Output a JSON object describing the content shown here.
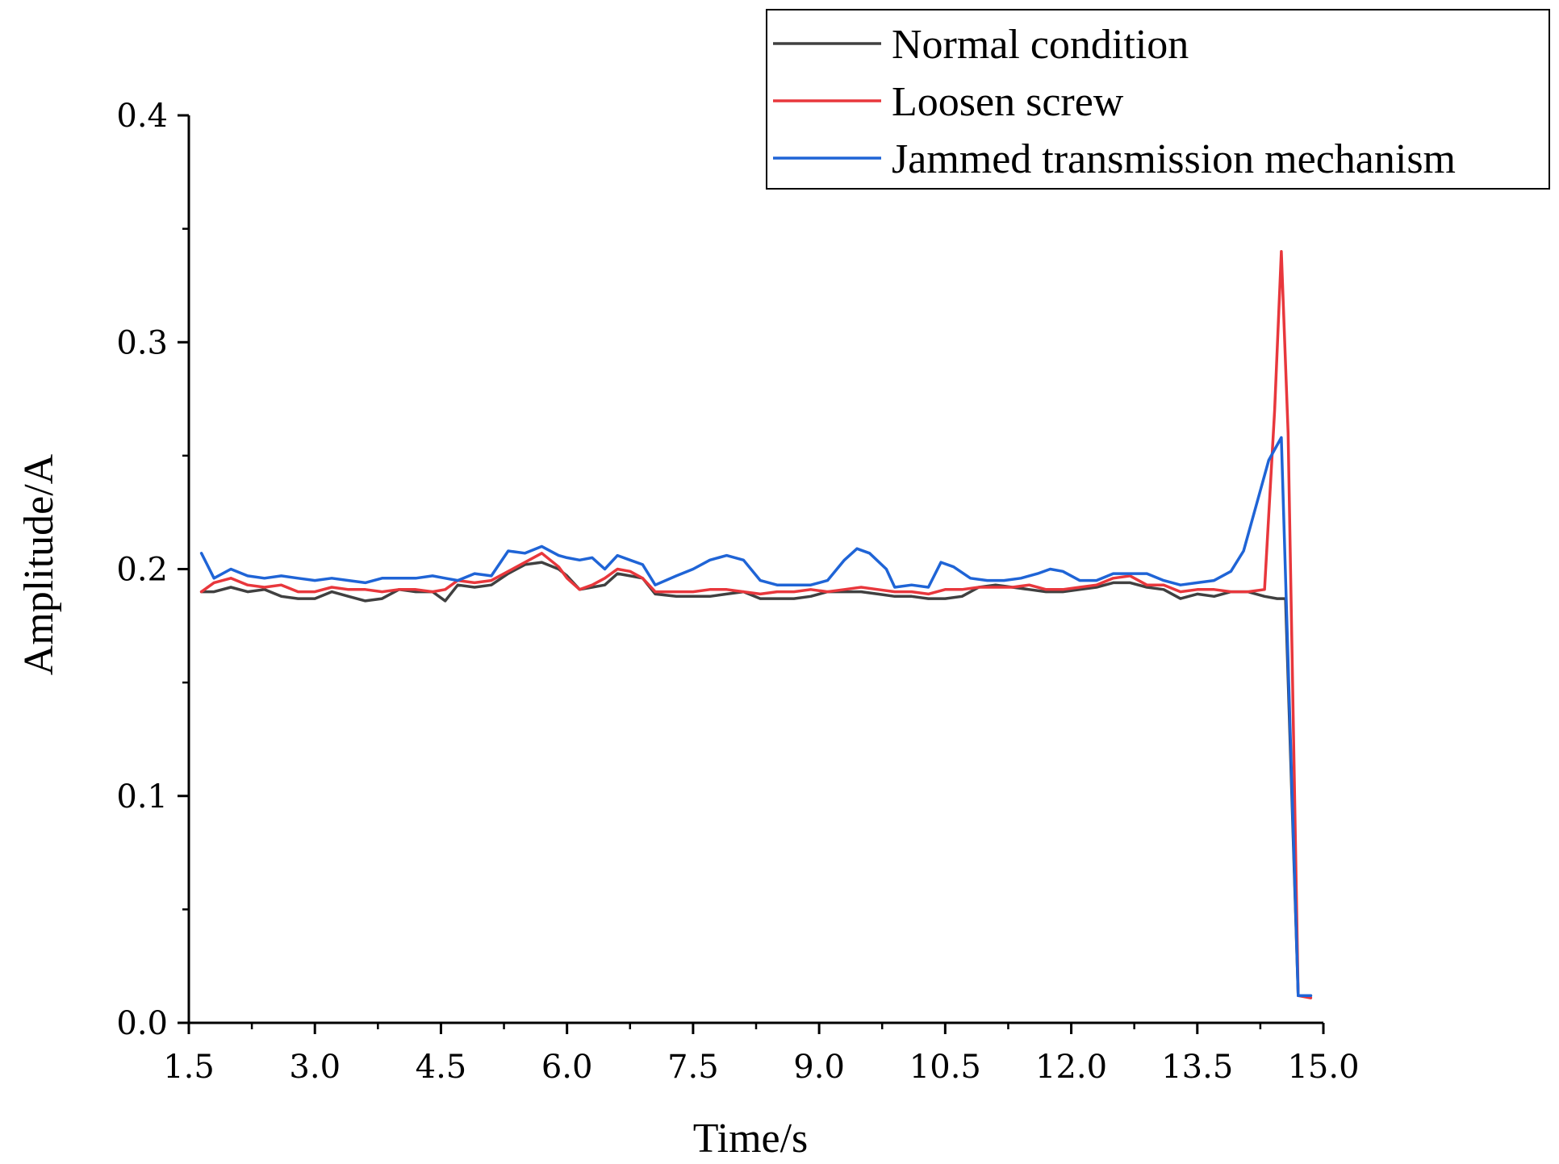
{
  "chart_data": {
    "type": "line",
    "title": "",
    "xlabel": "Time/s",
    "ylabel": "Amplitude/A",
    "xlim": [
      1.5,
      15.0
    ],
    "ylim": [
      0.0,
      0.4
    ],
    "xticks": [
      1.5,
      3.0,
      4.5,
      6.0,
      7.5,
      9.0,
      10.5,
      12.0,
      13.5,
      15.0
    ],
    "xtick_labels": [
      "1.5",
      "3.0",
      "4.5",
      "6.0",
      "7.5",
      "9.0",
      "10.5",
      "12.0",
      "13.5",
      "15.0"
    ],
    "yticks": [
      0.0,
      0.1,
      0.2,
      0.3,
      0.4
    ],
    "ytick_labels": [
      "0.0",
      "0.1",
      "0.2",
      "0.3",
      "0.4"
    ],
    "grid": false,
    "legend_position": "top-right",
    "series": [
      {
        "name": "Normal condition",
        "color": "#404040",
        "points": [
          [
            1.65,
            0.19
          ],
          [
            1.8,
            0.19
          ],
          [
            2.0,
            0.192
          ],
          [
            2.2,
            0.19
          ],
          [
            2.4,
            0.191
          ],
          [
            2.6,
            0.188
          ],
          [
            2.8,
            0.187
          ],
          [
            3.0,
            0.187
          ],
          [
            3.2,
            0.19
          ],
          [
            3.4,
            0.188
          ],
          [
            3.6,
            0.186
          ],
          [
            3.8,
            0.187
          ],
          [
            4.0,
            0.191
          ],
          [
            4.2,
            0.19
          ],
          [
            4.4,
            0.19
          ],
          [
            4.55,
            0.186
          ],
          [
            4.7,
            0.193
          ],
          [
            4.9,
            0.192
          ],
          [
            5.1,
            0.193
          ],
          [
            5.3,
            0.198
          ],
          [
            5.5,
            0.202
          ],
          [
            5.7,
            0.203
          ],
          [
            5.9,
            0.2
          ],
          [
            6.0,
            0.197
          ],
          [
            6.15,
            0.191
          ],
          [
            6.3,
            0.192
          ],
          [
            6.45,
            0.193
          ],
          [
            6.6,
            0.198
          ],
          [
            6.75,
            0.197
          ],
          [
            6.9,
            0.196
          ],
          [
            7.05,
            0.189
          ],
          [
            7.3,
            0.188
          ],
          [
            7.5,
            0.188
          ],
          [
            7.7,
            0.188
          ],
          [
            7.9,
            0.189
          ],
          [
            8.1,
            0.19
          ],
          [
            8.3,
            0.187
          ],
          [
            8.5,
            0.187
          ],
          [
            8.7,
            0.187
          ],
          [
            8.9,
            0.188
          ],
          [
            9.1,
            0.19
          ],
          [
            9.3,
            0.19
          ],
          [
            9.5,
            0.19
          ],
          [
            9.7,
            0.189
          ],
          [
            9.9,
            0.188
          ],
          [
            10.1,
            0.188
          ],
          [
            10.3,
            0.187
          ],
          [
            10.5,
            0.187
          ],
          [
            10.7,
            0.188
          ],
          [
            10.9,
            0.192
          ],
          [
            11.1,
            0.193
          ],
          [
            11.3,
            0.192
          ],
          [
            11.5,
            0.191
          ],
          [
            11.7,
            0.19
          ],
          [
            11.9,
            0.19
          ],
          [
            12.1,
            0.191
          ],
          [
            12.3,
            0.192
          ],
          [
            12.5,
            0.194
          ],
          [
            12.7,
            0.194
          ],
          [
            12.9,
            0.192
          ],
          [
            13.1,
            0.191
          ],
          [
            13.3,
            0.187
          ],
          [
            13.5,
            0.189
          ],
          [
            13.7,
            0.188
          ],
          [
            13.9,
            0.19
          ],
          [
            14.1,
            0.19
          ],
          [
            14.3,
            0.188
          ],
          [
            14.45,
            0.187
          ],
          [
            14.55,
            0.187
          ],
          [
            14.7,
            0.012
          ],
          [
            14.85,
            0.012
          ]
        ]
      },
      {
        "name": "Loosen screw",
        "color": "#e8373c",
        "points": [
          [
            1.65,
            0.19
          ],
          [
            1.8,
            0.194
          ],
          [
            2.0,
            0.196
          ],
          [
            2.2,
            0.193
          ],
          [
            2.4,
            0.192
          ],
          [
            2.6,
            0.193
          ],
          [
            2.8,
            0.19
          ],
          [
            3.0,
            0.19
          ],
          [
            3.2,
            0.192
          ],
          [
            3.4,
            0.191
          ],
          [
            3.6,
            0.191
          ],
          [
            3.8,
            0.19
          ],
          [
            4.0,
            0.191
          ],
          [
            4.2,
            0.191
          ],
          [
            4.4,
            0.19
          ],
          [
            4.55,
            0.191
          ],
          [
            4.7,
            0.195
          ],
          [
            4.9,
            0.194
          ],
          [
            5.1,
            0.195
          ],
          [
            5.3,
            0.199
          ],
          [
            5.5,
            0.203
          ],
          [
            5.7,
            0.207
          ],
          [
            5.9,
            0.201
          ],
          [
            6.0,
            0.196
          ],
          [
            6.15,
            0.191
          ],
          [
            6.3,
            0.193
          ],
          [
            6.45,
            0.196
          ],
          [
            6.6,
            0.2
          ],
          [
            6.75,
            0.199
          ],
          [
            6.9,
            0.196
          ],
          [
            7.05,
            0.19
          ],
          [
            7.3,
            0.19
          ],
          [
            7.5,
            0.19
          ],
          [
            7.7,
            0.191
          ],
          [
            7.9,
            0.191
          ],
          [
            8.1,
            0.19
          ],
          [
            8.3,
            0.189
          ],
          [
            8.5,
            0.19
          ],
          [
            8.7,
            0.19
          ],
          [
            8.9,
            0.191
          ],
          [
            9.1,
            0.19
          ],
          [
            9.3,
            0.191
          ],
          [
            9.5,
            0.192
          ],
          [
            9.7,
            0.191
          ],
          [
            9.9,
            0.19
          ],
          [
            10.1,
            0.19
          ],
          [
            10.3,
            0.189
          ],
          [
            10.5,
            0.191
          ],
          [
            10.7,
            0.191
          ],
          [
            10.9,
            0.192
          ],
          [
            11.1,
            0.192
          ],
          [
            11.3,
            0.192
          ],
          [
            11.5,
            0.193
          ],
          [
            11.7,
            0.191
          ],
          [
            11.9,
            0.191
          ],
          [
            12.1,
            0.192
          ],
          [
            12.3,
            0.193
          ],
          [
            12.5,
            0.196
          ],
          [
            12.7,
            0.197
          ],
          [
            12.9,
            0.193
          ],
          [
            13.1,
            0.193
          ],
          [
            13.3,
            0.19
          ],
          [
            13.5,
            0.191
          ],
          [
            13.7,
            0.191
          ],
          [
            13.9,
            0.19
          ],
          [
            14.1,
            0.19
          ],
          [
            14.3,
            0.191
          ],
          [
            14.42,
            0.27
          ],
          [
            14.5,
            0.34
          ],
          [
            14.58,
            0.26
          ],
          [
            14.7,
            0.012
          ],
          [
            14.85,
            0.011
          ]
        ]
      },
      {
        "name": "Jammed transmission mechanism",
        "color": "#1f64d6",
        "points": [
          [
            1.65,
            0.207
          ],
          [
            1.8,
            0.196
          ],
          [
            2.0,
            0.2
          ],
          [
            2.2,
            0.197
          ],
          [
            2.4,
            0.196
          ],
          [
            2.6,
            0.197
          ],
          [
            2.8,
            0.196
          ],
          [
            3.0,
            0.195
          ],
          [
            3.2,
            0.196
          ],
          [
            3.4,
            0.195
          ],
          [
            3.6,
            0.194
          ],
          [
            3.8,
            0.196
          ],
          [
            4.0,
            0.196
          ],
          [
            4.2,
            0.196
          ],
          [
            4.4,
            0.197
          ],
          [
            4.55,
            0.196
          ],
          [
            4.7,
            0.195
          ],
          [
            4.9,
            0.198
          ],
          [
            5.1,
            0.197
          ],
          [
            5.3,
            0.208
          ],
          [
            5.5,
            0.207
          ],
          [
            5.7,
            0.21
          ],
          [
            5.9,
            0.206
          ],
          [
            6.0,
            0.205
          ],
          [
            6.15,
            0.204
          ],
          [
            6.3,
            0.205
          ],
          [
            6.45,
            0.2
          ],
          [
            6.6,
            0.206
          ],
          [
            6.75,
            0.204
          ],
          [
            6.9,
            0.202
          ],
          [
            7.05,
            0.193
          ],
          [
            7.3,
            0.197
          ],
          [
            7.5,
            0.2
          ],
          [
            7.7,
            0.204
          ],
          [
            7.9,
            0.206
          ],
          [
            8.1,
            0.204
          ],
          [
            8.3,
            0.195
          ],
          [
            8.5,
            0.193
          ],
          [
            8.7,
            0.193
          ],
          [
            8.9,
            0.193
          ],
          [
            9.1,
            0.195
          ],
          [
            9.3,
            0.204
          ],
          [
            9.45,
            0.209
          ],
          [
            9.6,
            0.207
          ],
          [
            9.8,
            0.2
          ],
          [
            9.9,
            0.192
          ],
          [
            10.1,
            0.193
          ],
          [
            10.3,
            0.192
          ],
          [
            10.45,
            0.203
          ],
          [
            10.6,
            0.201
          ],
          [
            10.8,
            0.196
          ],
          [
            11.0,
            0.195
          ],
          [
            11.2,
            0.195
          ],
          [
            11.4,
            0.196
          ],
          [
            11.6,
            0.198
          ],
          [
            11.75,
            0.2
          ],
          [
            11.9,
            0.199
          ],
          [
            12.1,
            0.195
          ],
          [
            12.3,
            0.195
          ],
          [
            12.5,
            0.198
          ],
          [
            12.7,
            0.198
          ],
          [
            12.9,
            0.198
          ],
          [
            13.1,
            0.195
          ],
          [
            13.3,
            0.193
          ],
          [
            13.5,
            0.194
          ],
          [
            13.7,
            0.195
          ],
          [
            13.9,
            0.199
          ],
          [
            14.05,
            0.208
          ],
          [
            14.2,
            0.228
          ],
          [
            14.35,
            0.248
          ],
          [
            14.5,
            0.258
          ],
          [
            14.7,
            0.012
          ],
          [
            14.85,
            0.012
          ]
        ]
      }
    ]
  }
}
